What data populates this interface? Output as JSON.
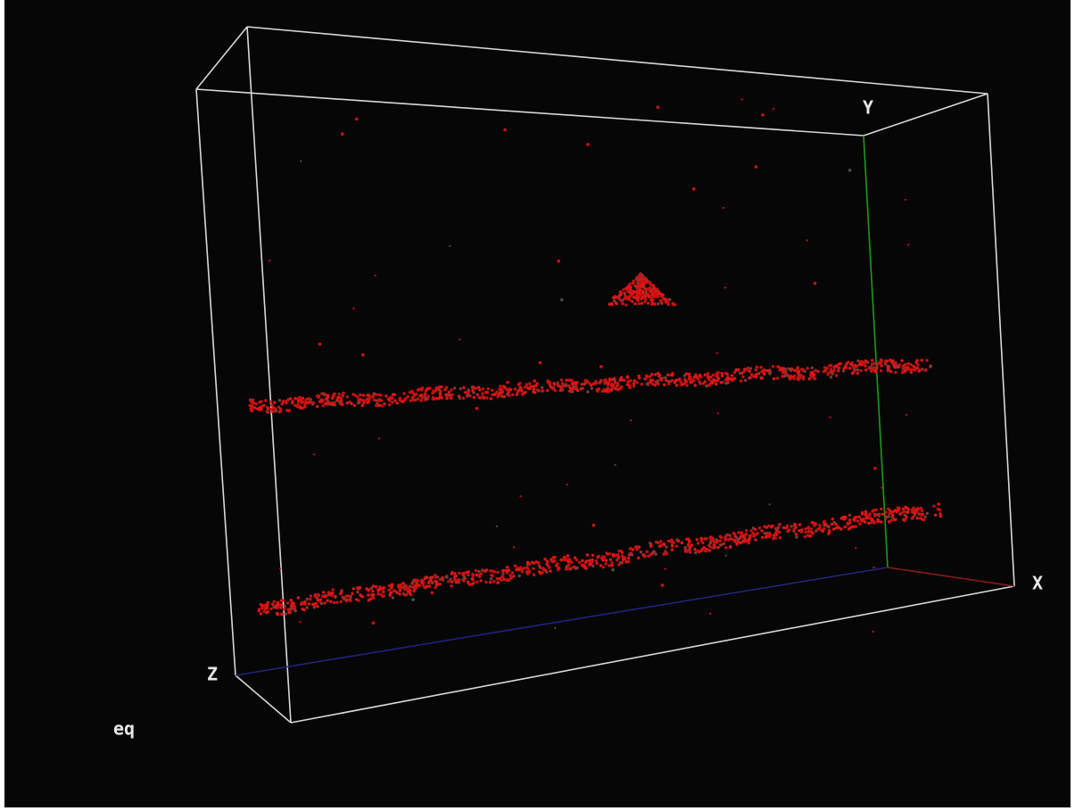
{
  "axes": {
    "x": "X",
    "y": "Y",
    "z": "Z"
  },
  "molecule_label": "eq"
}
